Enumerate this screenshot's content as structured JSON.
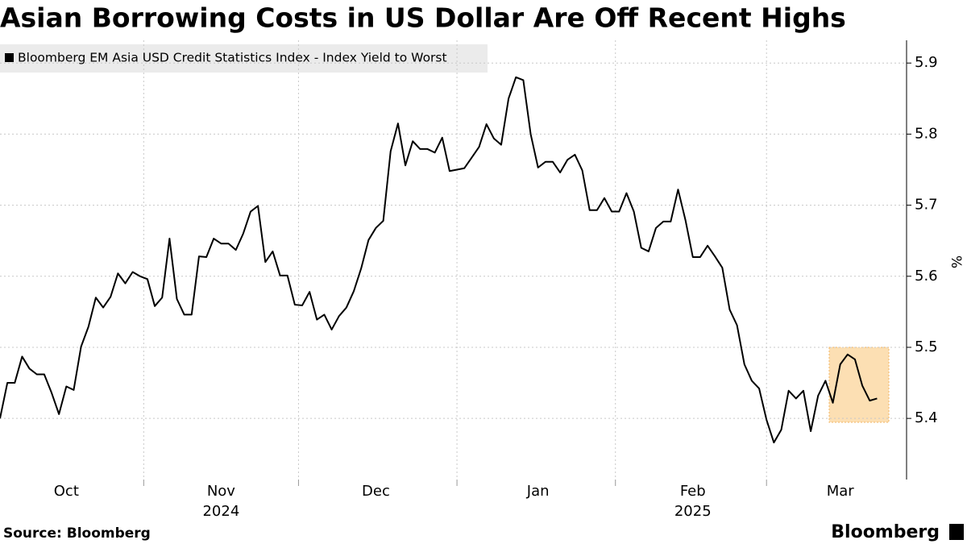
{
  "chart_data": {
    "type": "line",
    "title": "Asian Borrowing Costs in US Dollar Are Off Recent Highs",
    "source": "Source: Bloomberg",
    "brand": "Bloomberg",
    "y_label": "%",
    "categories": [
      null,
      null,
      null,
      null,
      null,
      null,
      null,
      null,
      null,
      "Oct",
      null,
      null,
      null,
      null,
      null,
      null,
      null,
      null,
      null,
      null,
      null,
      null,
      null,
      null,
      null,
      null,
      null,
      null,
      null,
      null,
      "Nov",
      null,
      null,
      null,
      null,
      null,
      null,
      null,
      null,
      null,
      null,
      null,
      null,
      null,
      null,
      null,
      null,
      null,
      null,
      null,
      null,
      "Dec",
      null,
      null,
      null,
      null,
      null,
      null,
      null,
      null,
      null,
      null,
      null,
      null,
      null,
      null,
      null,
      null,
      null,
      null,
      null,
      null,
      null,
      "Jan",
      null,
      null,
      null,
      null,
      null,
      null,
      null,
      null,
      null,
      null,
      null,
      null,
      null,
      null,
      null,
      null,
      null,
      null,
      null,
      null,
      "Feb",
      null,
      null,
      null,
      null,
      null,
      null,
      null,
      null,
      null,
      null,
      null,
      null,
      null,
      null,
      null,
      null,
      null,
      null,
      null,
      "Mar",
      null,
      null,
      null,
      null,
      null
    ],
    "x_groups": [
      {
        "label": "2024",
        "under": "Nov"
      },
      {
        "label": "2025",
        "under": "Feb"
      }
    ],
    "series": [
      {
        "name": "Bloomberg EM Asia USD Credit Statistics Index - Index Yield to Worst",
        "color": "#000000",
        "values": [
          5.4,
          5.45,
          5.45,
          5.487,
          5.47,
          5.462,
          5.462,
          5.436,
          5.406,
          5.445,
          5.44,
          5.501,
          5.529,
          5.57,
          5.556,
          5.571,
          5.604,
          5.59,
          5.606,
          5.6,
          5.596,
          5.558,
          5.57,
          5.653,
          5.568,
          5.546,
          5.546,
          5.628,
          5.627,
          5.653,
          5.646,
          5.646,
          5.637,
          5.66,
          5.691,
          5.699,
          5.62,
          5.635,
          5.601,
          5.601,
          5.56,
          5.559,
          5.578,
          5.539,
          5.546,
          5.525,
          5.544,
          5.556,
          5.579,
          5.611,
          5.651,
          5.668,
          5.678,
          5.776,
          5.815,
          5.756,
          5.79,
          5.779,
          5.779,
          5.774,
          5.795,
          5.748,
          5.75,
          5.752,
          5.767,
          5.782,
          5.814,
          5.794,
          5.785,
          5.85,
          5.88,
          5.876,
          5.8,
          5.753,
          5.761,
          5.761,
          5.746,
          5.764,
          5.771,
          5.749,
          5.693,
          5.693,
          5.71,
          5.691,
          5.691,
          5.717,
          5.691,
          5.64,
          5.635,
          5.668,
          5.677,
          5.677,
          5.722,
          5.679,
          5.627,
          5.627,
          5.643,
          5.628,
          5.612,
          5.553,
          5.531,
          5.476,
          5.453,
          5.442,
          5.398,
          5.366,
          5.384,
          5.439,
          5.428,
          5.439,
          5.382,
          5.432,
          5.453,
          5.422,
          5.476,
          5.49,
          5.483,
          5.446,
          5.425,
          5.428
        ]
      }
    ],
    "ylim": [
      5.314,
      5.932
    ],
    "yticks": [
      5.4,
      5.5,
      5.6,
      5.7,
      5.8,
      5.9
    ],
    "grid": true
  }
}
